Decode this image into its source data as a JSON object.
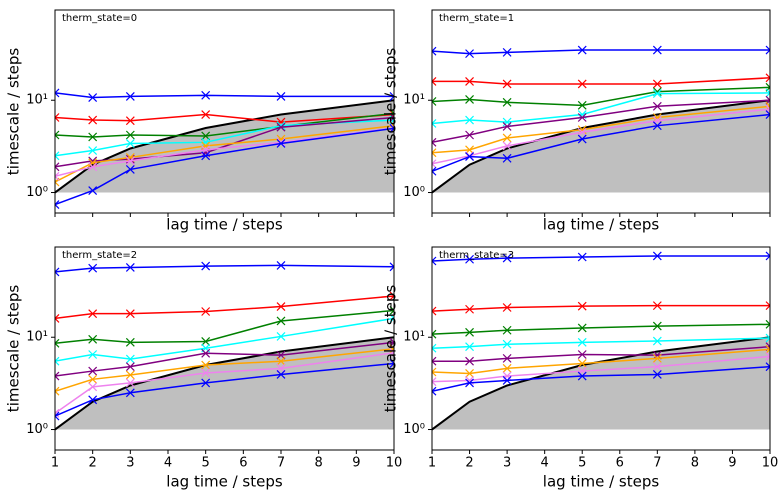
{
  "chart_data": [
    {
      "type": "line",
      "title": "therm_state=0",
      "xlabel": "lag time / steps",
      "ylabel": "timescale / steps",
      "log_y": true,
      "show_xtick_labels": false,
      "x": [
        1,
        2,
        3,
        5,
        7,
        10
      ],
      "xlim": [
        1,
        10
      ],
      "xticks": [
        1,
        2,
        3,
        4,
        5,
        6,
        7,
        8,
        9,
        10
      ],
      "ylim": [
        0.6,
        95
      ],
      "yticks": [
        {
          "value": 1,
          "label": "10⁰"
        },
        {
          "value": 10,
          "label": "10¹"
        }
      ],
      "series": [
        {
          "color": "#000000",
          "marker": "none",
          "fill": "#bfbfbf",
          "fill_base": 1,
          "values": [
            1,
            2,
            3,
            5,
            7,
            10
          ]
        },
        {
          "color": "#0000ff",
          "marker": "x",
          "values": [
            12,
            10.7,
            11,
            11.3,
            11,
            11
          ]
        },
        {
          "color": "#ff0000",
          "marker": "x",
          "values": [
            6.5,
            6.1,
            6.0,
            7.0,
            5.8,
            7.0
          ]
        },
        {
          "color": "#008000",
          "marker": "x",
          "values": [
            4.2,
            4.0,
            4.2,
            4.1,
            5.2,
            7.2
          ]
        },
        {
          "color": "#00ffff",
          "marker": "x",
          "values": [
            2.5,
            2.85,
            3.4,
            3.5,
            5.3,
            6.1
          ]
        },
        {
          "color": "#800080",
          "marker": "x",
          "values": [
            1.9,
            2.2,
            2.3,
            2.7,
            5.1,
            6.5
          ]
        },
        {
          "color": "#ffa500",
          "marker": "x",
          "values": [
            1.3,
            2.1,
            2.4,
            3.2,
            3.8,
            5.3
          ]
        },
        {
          "color": "#ee82ee",
          "marker": "x",
          "values": [
            1.5,
            1.9,
            2.2,
            2.9,
            3.5,
            5.0
          ]
        },
        {
          "color": "#0000ff",
          "marker": "x",
          "values": [
            0.74,
            1.05,
            1.78,
            2.5,
            3.4,
            4.95
          ]
        }
      ]
    },
    {
      "type": "line",
      "title": "therm_state=1",
      "xlabel": "lag time / steps",
      "ylabel": "timescale / steps",
      "log_y": true,
      "show_xtick_labels": false,
      "x": [
        1,
        2,
        3,
        5,
        7,
        10
      ],
      "xlim": [
        1,
        10
      ],
      "xticks": [
        1,
        2,
        3,
        4,
        5,
        6,
        7,
        8,
        9,
        10
      ],
      "ylim": [
        0.6,
        95
      ],
      "yticks": [
        {
          "value": 1,
          "label": "10⁰"
        },
        {
          "value": 10,
          "label": "10¹"
        }
      ],
      "series": [
        {
          "color": "#000000",
          "marker": "none",
          "fill": "#bfbfbf",
          "fill_base": 1,
          "values": [
            1,
            2,
            3,
            5,
            7,
            10
          ]
        },
        {
          "color": "#0000ff",
          "marker": "x",
          "values": [
            34,
            32,
            33,
            35,
            35,
            35
          ]
        },
        {
          "color": "#ff0000",
          "marker": "x",
          "values": [
            16,
            16,
            15,
            15,
            15,
            17.5
          ]
        },
        {
          "color": "#008000",
          "marker": "x",
          "values": [
            9.7,
            10.2,
            9.5,
            8.8,
            12.4,
            13.8
          ]
        },
        {
          "color": "#00ffff",
          "marker": "x",
          "values": [
            5.6,
            6.1,
            5.8,
            7,
            11.8,
            12
          ]
        },
        {
          "color": "#800080",
          "marker": "x",
          "values": [
            3.5,
            4.2,
            5.2,
            6.5,
            8.6,
            10
          ]
        },
        {
          "color": "#ffa500",
          "marker": "x",
          "values": [
            2.7,
            2.9,
            3.9,
            4.8,
            6.5,
            8.6
          ]
        },
        {
          "color": "#ee82ee",
          "marker": "x",
          "values": [
            2.05,
            2.5,
            3.2,
            4.5,
            6,
            8
          ]
        },
        {
          "color": "#0000ff",
          "marker": "x",
          "values": [
            1.7,
            2.45,
            2.35,
            3.8,
            5.3,
            7
          ]
        }
      ]
    },
    {
      "type": "line",
      "title": "therm_state=2",
      "xlabel": "lag time / steps",
      "ylabel": "timescale / steps",
      "log_y": true,
      "show_xtick_labels": true,
      "x": [
        1,
        2,
        3,
        5,
        7,
        10
      ],
      "xlim": [
        1,
        10
      ],
      "xticks": [
        1,
        2,
        3,
        4,
        5,
        6,
        7,
        8,
        9,
        10
      ],
      "ylim": [
        0.6,
        95
      ],
      "yticks": [
        {
          "value": 1,
          "label": "10⁰"
        },
        {
          "value": 10,
          "label": "10¹"
        }
      ],
      "series": [
        {
          "color": "#000000",
          "marker": "none",
          "fill": "#bfbfbf",
          "fill_base": 1,
          "values": [
            1,
            2,
            3,
            5,
            7,
            10
          ]
        },
        {
          "color": "#0000ff",
          "marker": "x",
          "values": [
            51,
            56,
            57,
            59,
            60,
            58
          ]
        },
        {
          "color": "#ff0000",
          "marker": "x",
          "values": [
            16,
            18,
            18,
            19,
            21.5,
            28
          ]
        },
        {
          "color": "#008000",
          "marker": "x",
          "values": [
            8.6,
            9.5,
            8.8,
            9,
            15,
            19.5
          ]
        },
        {
          "color": "#00ffff",
          "marker": "x",
          "values": [
            5.5,
            6.5,
            5.8,
            7.6,
            10.2,
            16
          ]
        },
        {
          "color": "#800080",
          "marker": "x",
          "values": [
            3.8,
            4.3,
            4.8,
            6.7,
            6.4,
            8.8
          ]
        },
        {
          "color": "#ffa500",
          "marker": "x",
          "values": [
            2.6,
            3.5,
            3.9,
            5,
            5.5,
            7.5
          ]
        },
        {
          "color": "#ee82ee",
          "marker": "x",
          "values": [
            1.5,
            2.9,
            3.2,
            4.1,
            4.6,
            6.8
          ]
        },
        {
          "color": "#0000ff",
          "marker": "x",
          "values": [
            1.4,
            2.1,
            2.5,
            3.2,
            3.95,
            5.2
          ]
        }
      ]
    },
    {
      "type": "line",
      "title": "therm_state=3",
      "xlabel": "lag time / steps",
      "ylabel": "timescale / steps",
      "log_y": true,
      "show_xtick_labels": true,
      "x": [
        1,
        2,
        3,
        5,
        7,
        10
      ],
      "xlim": [
        1,
        10
      ],
      "xticks": [
        1,
        2,
        3,
        4,
        5,
        6,
        7,
        8,
        9,
        10
      ],
      "ylim": [
        0.6,
        95
      ],
      "yticks": [
        {
          "value": 1,
          "label": "10⁰"
        },
        {
          "value": 10,
          "label": "10¹"
        }
      ],
      "series": [
        {
          "color": "#000000",
          "marker": "none",
          "fill": "#bfbfbf",
          "fill_base": 1,
          "values": [
            1,
            2,
            3,
            5,
            7,
            10
          ]
        },
        {
          "color": "#0000ff",
          "marker": "x",
          "values": [
            67,
            70,
            72,
            74,
            76,
            76
          ]
        },
        {
          "color": "#ff0000",
          "marker": "x",
          "values": [
            19.2,
            20.1,
            21,
            21.7,
            22,
            22
          ]
        },
        {
          "color": "#008000",
          "marker": "x",
          "values": [
            10.8,
            11.3,
            11.9,
            12.6,
            13.2,
            13.8
          ]
        },
        {
          "color": "#00ffff",
          "marker": "x",
          "values": [
            7.6,
            7.9,
            8.4,
            8.8,
            9.1,
            9.8
          ]
        },
        {
          "color": "#800080",
          "marker": "x",
          "values": [
            5.5,
            5.5,
            5.9,
            6.5,
            6.4,
            7.9
          ]
        },
        {
          "color": "#ffa500",
          "marker": "x",
          "values": [
            4.2,
            4.05,
            4.6,
            5.2,
            5.9,
            7.4
          ]
        },
        {
          "color": "#ee82ee",
          "marker": "x",
          "values": [
            3.3,
            3.4,
            3.8,
            4.3,
            4.8,
            6.2
          ]
        },
        {
          "color": "#0000ff",
          "marker": "x",
          "values": [
            2.6,
            3.2,
            3.4,
            3.8,
            3.95,
            4.8
          ]
        }
      ]
    }
  ]
}
